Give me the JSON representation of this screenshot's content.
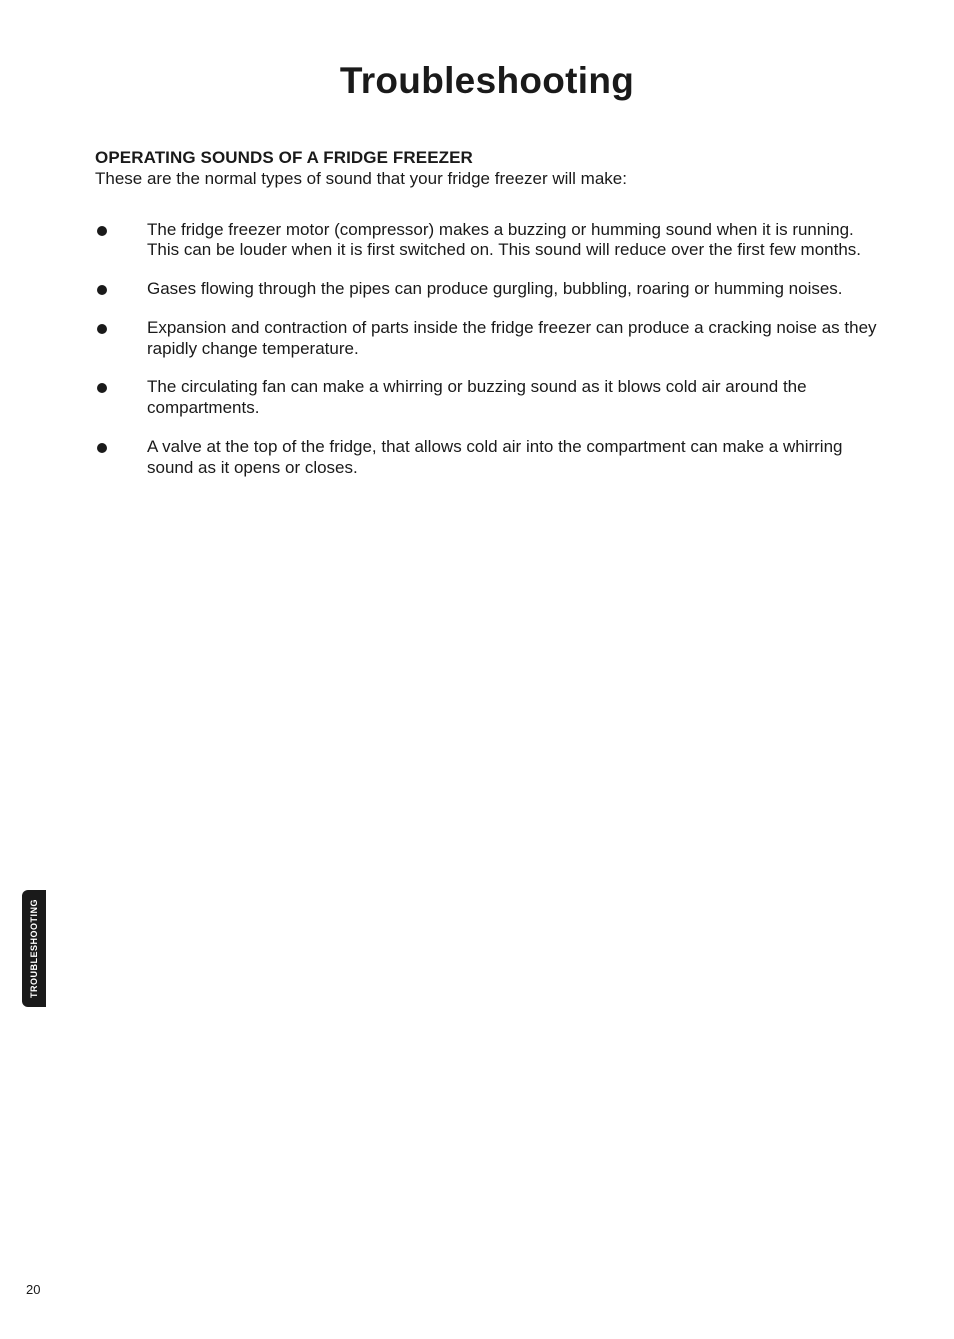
{
  "title": "Troubleshooting",
  "section_heading": "OPERATING SOUNDS OF A FRIDGE FREEZER",
  "intro": "These are the normal types of sound that your fridge freezer will make:",
  "bullets": [
    "The fridge freezer motor (compressor) makes a buzzing or humming sound when it is running.  This can be louder when it is first switched on.  This sound will reduce over the first few months.",
    "Gases flowing through the pipes can produce gurgling, bubbling, roaring or humming noises.",
    "Expansion and contraction of parts inside the fridge freezer can produce a cracking noise as they rapidly change temperature.",
    "The circulating fan can make a whirring or buzzing sound as it blows cold air around the compartments.",
    "A valve at the top of the fridge, that allows cold air into the compartment can make a whirring sound as it opens or closes."
  ],
  "side_tab": "TROUBLESHOOTING",
  "page_number": "20",
  "colors": {
    "text": "#1a1a1a",
    "background": "#ffffff",
    "tab_bg": "#1a1a1a",
    "tab_text": "#ffffff"
  },
  "typography": {
    "title_fontsize": 37,
    "title_weight": 700,
    "heading_fontsize": 17,
    "heading_weight": 700,
    "body_fontsize": 17,
    "body_weight": 400,
    "side_tab_fontsize": 9,
    "page_number_fontsize": 13
  }
}
